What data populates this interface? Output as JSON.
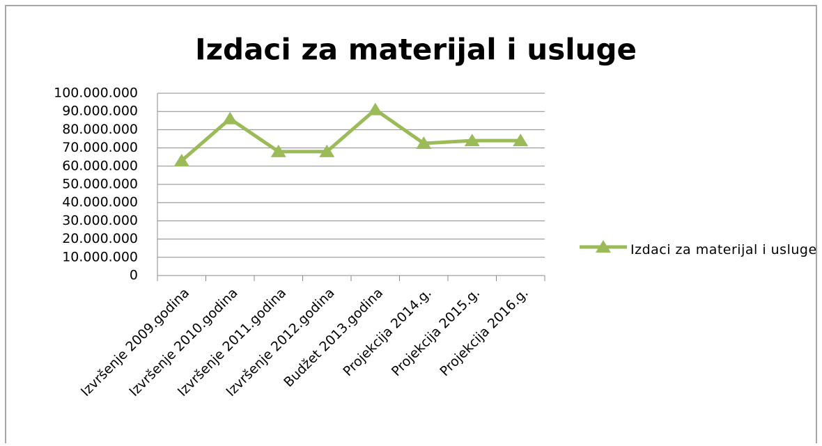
{
  "chart_data": {
    "type": "line",
    "title": "Izdaci za materijal i usluge",
    "categories": [
      "Izvršenje 2009.godina",
      "Izvršenje 2010.godina",
      "Izvršenje 2011.godina",
      "Izvršenje 2012.godina",
      "Budžet 2013.godina",
      "Projekcija 2014.g.",
      "Projekcija 2015.g.",
      "Projekcija 2016.g."
    ],
    "series": [
      {
        "name": "Izdaci za materijal i usluge",
        "color": "#9bbb59",
        "values": [
          63000000,
          86000000,
          68000000,
          68000000,
          91000000,
          72500000,
          74000000,
          74000000
        ]
      }
    ],
    "ylim": [
      0,
      100000000
    ],
    "yticks": [
      {
        "value": 0,
        "label": "0"
      },
      {
        "value": 10000000,
        "label": "10.000.000"
      },
      {
        "value": 20000000,
        "label": "20.000.000"
      },
      {
        "value": 30000000,
        "label": "30.000.000"
      },
      {
        "value": 40000000,
        "label": "40.000.000"
      },
      {
        "value": 50000000,
        "label": "50.000.000"
      },
      {
        "value": 60000000,
        "label": "60.000.000"
      },
      {
        "value": 70000000,
        "label": "70.000.000"
      },
      {
        "value": 80000000,
        "label": "80.000.000"
      },
      {
        "value": 90000000,
        "label": "90.000.000"
      },
      {
        "value": 100000000,
        "label": "100.000.000"
      }
    ],
    "grid": true,
    "legend": "right"
  }
}
